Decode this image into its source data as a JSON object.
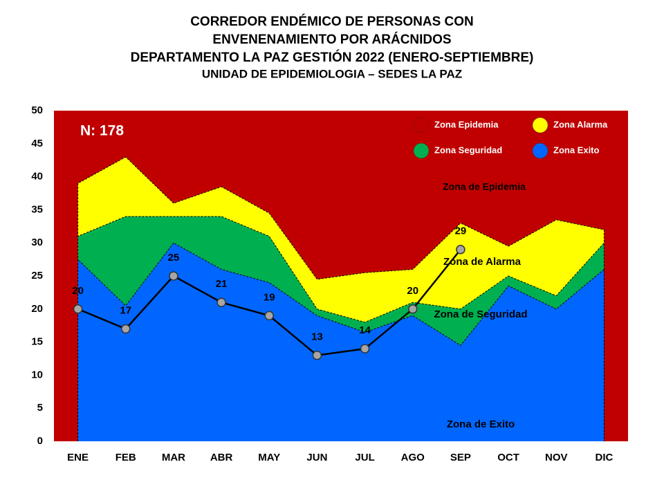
{
  "chart_data": {
    "type": "endemic-corridor",
    "title": [
      "CORREDOR ENDÉMICO DE PERSONAS CON",
      "ENVENENAMIENTO POR ARÁCNIDOS",
      "DEPARTAMENTO  LA PAZ GESTIÓN 2022 (ENERO-SEPTIEMBRE)",
      "UNIDAD DE EPIDEMIOLOGIA – SEDES LA PAZ"
    ],
    "categories": [
      "ENE",
      "FEB",
      "MAR",
      "ABR",
      "MAY",
      "JUN",
      "JUL",
      "AGO",
      "SEP",
      "OCT",
      "NOV",
      "DIC"
    ],
    "background_zone": {
      "name": "Zona Epidemia",
      "color": "#c00000"
    },
    "series": [
      {
        "name": "Zona Alarma",
        "color": "#ffff00",
        "values": [
          39,
          43,
          36,
          38.5,
          34.5,
          24.5,
          25.5,
          26,
          33,
          29.5,
          33.5,
          32
        ]
      },
      {
        "name": "Zona Seguridad",
        "color": "#00b050",
        "values": [
          31,
          34,
          34,
          34,
          31,
          20,
          18,
          21,
          20,
          25,
          22,
          30
        ]
      },
      {
        "name": "Zona Exito",
        "color": "#0066ff",
        "values": [
          27.5,
          20.5,
          30,
          26,
          24,
          19,
          16.5,
          19,
          14.5,
          23.5,
          20,
          26
        ]
      }
    ],
    "cases": {
      "color": "#000000",
      "marker_color": "#a6a6a6",
      "values": [
        20,
        17,
        25,
        21,
        19,
        13,
        14,
        20,
        29,
        null,
        null,
        null
      ]
    },
    "legend_order": [
      "Zona Epidemia",
      "Zona Alarma",
      "Zona Seguridad",
      "Zona Exito"
    ],
    "legend_position": "top-right",
    "annotations": [
      "N: 178",
      "Zona de Epidemia",
      "Zona de Alarma",
      "Zona de Seguridad",
      "Zona de Exito"
    ],
    "ylim": [
      0,
      50
    ],
    "yticks": [
      0,
      5,
      10,
      15,
      20,
      25,
      30,
      35,
      40,
      45,
      50
    ],
    "grid": false
  }
}
